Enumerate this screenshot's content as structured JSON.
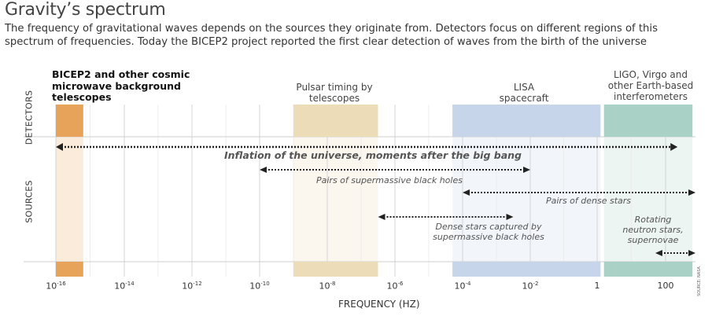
{
  "title": "Gravity’s spectrum",
  "subtitle": "The frequency of gravitational waves depends on the sources they originate from. Detectors focus on different regions of this spectrum of frequencies. Today the BICEP2 project reported the first clear detection of waves from the birth of the universe",
  "row_labels": {
    "detectors": "DETECTORS",
    "sources": "SOURCES"
  },
  "detectors": [
    {
      "name": "BICEP2 and other cosmic microwave background telescopes",
      "from_exp": -16,
      "to_exp": -15.2,
      "color": "#e8a35a"
    },
    {
      "name": "Pulsar timing by telescopes",
      "from_exp": -9,
      "to_exp": -6.5,
      "color": "#ecdcb8"
    },
    {
      "name": "LISA spacecraft",
      "from_exp": -4.3,
      "to_exp": 0.1,
      "color": "#c6d5ea"
    },
    {
      "name": "LIGO, Virgo and other Earth-based interferometers",
      "from_exp": 0.2,
      "to_exp": 2.9,
      "color": "#a9d1c5"
    }
  ],
  "sources": [
    {
      "name": "Inflation of the universe, moments after the big bang",
      "from_exp": -16,
      "to_exp": 2.4
    },
    {
      "name": "Pairs of supermassive black holes",
      "from_exp": -10,
      "to_exp": -2
    },
    {
      "name": "Pairs of dense stars",
      "from_exp": -4,
      "to_exp": 3
    },
    {
      "name": "Dense stars captured by supermassive black holes",
      "from_exp": -6.5,
      "to_exp": -2.5
    },
    {
      "name": "Rotating neutron stars, supernovae",
      "from_exp": 1.7,
      "to_exp": 3
    }
  ],
  "axis": {
    "title": "FREQUENCY (HZ)",
    "min_exp": -16,
    "max_exp": 3,
    "ticks": [
      {
        "base": "10",
        "exp": "-16",
        "value": -16
      },
      {
        "base": "10",
        "exp": "-14",
        "value": -14
      },
      {
        "base": "10",
        "exp": "-12",
        "value": -12
      },
      {
        "base": "10",
        "exp": "-10",
        "value": -10
      },
      {
        "base": "10",
        "exp": "-8",
        "value": -8
      },
      {
        "base": "10",
        "exp": "-6",
        "value": -6
      },
      {
        "base": "10",
        "exp": "-4",
        "value": -4
      },
      {
        "base": "10",
        "exp": "-2",
        "value": -2
      },
      {
        "base": "1",
        "exp": "",
        "value": 0
      },
      {
        "base": "100",
        "exp": "",
        "value": 2
      }
    ]
  },
  "source_note": "SOURCE: NASA"
}
